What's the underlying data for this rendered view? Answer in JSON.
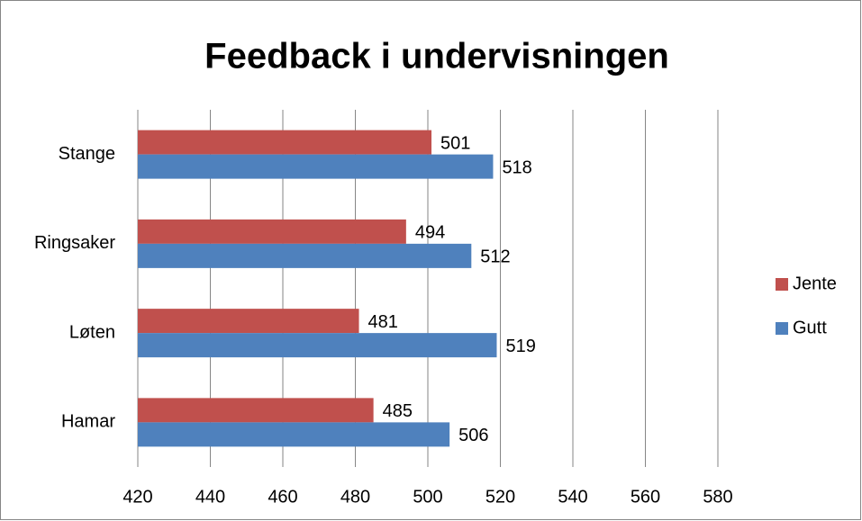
{
  "chart_data": {
    "type": "barh",
    "title": "Feedback i undervisningen",
    "categories": [
      "Hamar",
      "Løten",
      "Ringsaker",
      "Stange"
    ],
    "series": [
      {
        "name": "Jente",
        "color": "#c0504d",
        "values": [
          485,
          481,
          494,
          501
        ]
      },
      {
        "name": "Gutt",
        "color": "#4f81bd",
        "values": [
          506,
          519,
          512,
          518
        ]
      }
    ],
    "xlim": [
      420,
      580
    ],
    "xticks": [
      420,
      440,
      460,
      480,
      500,
      520,
      540,
      560,
      580
    ],
    "grid": true,
    "legend": "right"
  }
}
